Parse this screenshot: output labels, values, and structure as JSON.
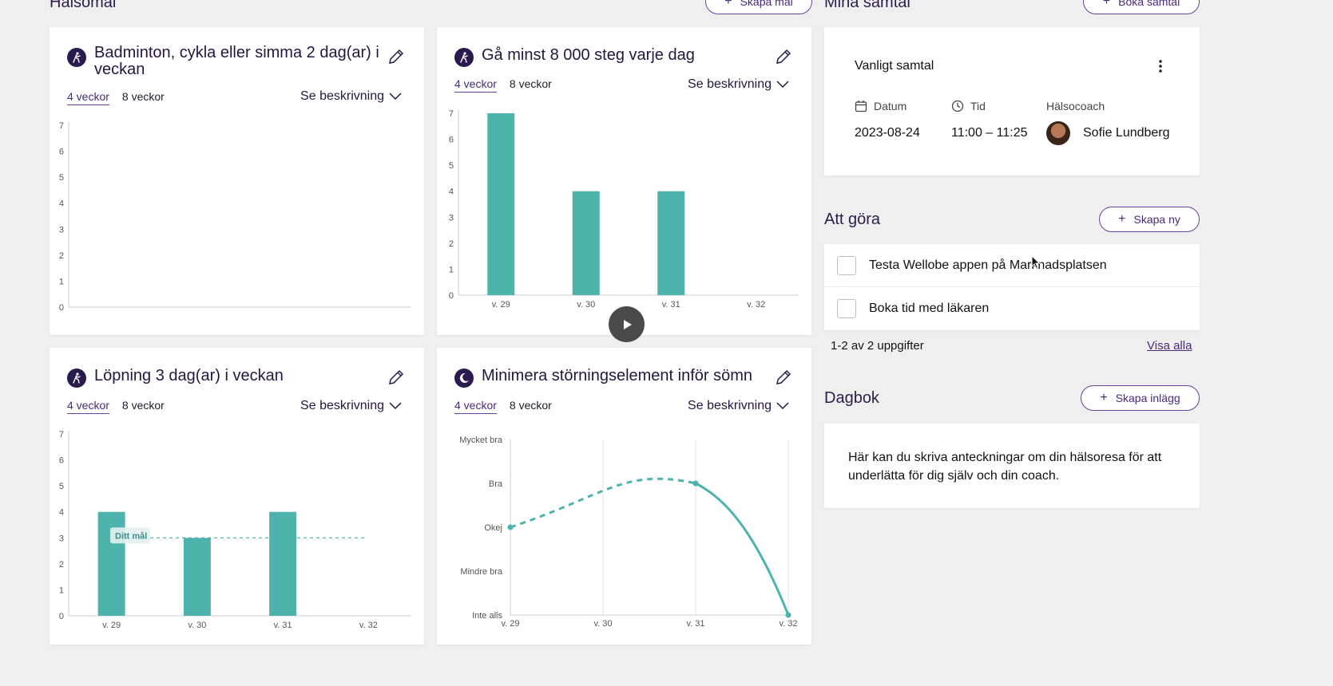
{
  "health_goals": {
    "title": "Hälsomål",
    "create_button": "Skapa mål"
  },
  "goals": [
    {
      "title": "Badminton, cykla eller simma 2 dag(ar) i veckan",
      "icon": "walking-icon",
      "tab_4": "4 veckor",
      "tab_8": "8 veckor",
      "description": "Se beskrivning",
      "chart_data": {
        "type": "bar",
        "categories": [],
        "values": [],
        "ylim": [
          0,
          7
        ],
        "yticks": [
          "0",
          "1",
          "2",
          "3",
          "4",
          "5",
          "6",
          "7"
        ]
      }
    },
    {
      "title": "Gå minst 8 000 steg varje dag",
      "icon": "walking-icon",
      "tab_4": "4 veckor",
      "tab_8": "8 veckor",
      "description": "Se beskrivning",
      "chart_data": {
        "type": "bar",
        "categories": [
          "v. 29",
          "v. 30",
          "v. 31",
          "v. 32"
        ],
        "values": [
          7,
          4,
          4,
          0
        ],
        "ylim": [
          0,
          7
        ],
        "yticks": [
          "0",
          "1",
          "2",
          "3",
          "4",
          "5",
          "6",
          "7"
        ]
      }
    },
    {
      "title": "Löpning 3 dag(ar) i veckan",
      "icon": "walking-icon",
      "tab_4": "4 veckor",
      "tab_8": "8 veckor",
      "description": "Se beskrivning",
      "chart_data": {
        "type": "bar",
        "categories": [
          "v. 29",
          "v. 30",
          "v. 31",
          "v. 32"
        ],
        "values": [
          4,
          3,
          4,
          0
        ],
        "ylim": [
          0,
          7
        ],
        "yticks": [
          "0",
          "1",
          "2",
          "3",
          "4",
          "5",
          "6",
          "7"
        ],
        "target_value": 3,
        "target_label": "Ditt mål"
      }
    },
    {
      "title": "Minimera störningselement inför sömn",
      "icon": "moon-icon",
      "tab_4": "4 veckor",
      "tab_8": "8 veckor",
      "description": "Se beskrivning",
      "chart_data": {
        "type": "line",
        "categories": [
          "v. 29",
          "v. 30",
          "v. 31",
          "v. 32"
        ],
        "levels": [
          "Inte alls",
          "Mindre bra",
          "Okej",
          "Bra",
          "Mycket bra"
        ],
        "values": [
          2,
          null,
          3,
          0
        ]
      }
    }
  ],
  "calls": {
    "title": "Mina samtal",
    "book_button": "Boka samtal",
    "card": {
      "type": "Vanligt samtal",
      "date_label": "Datum",
      "date": "2023-08-24",
      "time_label": "Tid",
      "time": "11:00 – 11:25",
      "coach_label": "Hälsocoach",
      "coach": "Sofie Lundberg"
    }
  },
  "todo": {
    "title": "Att göra",
    "create_button": "Skapa ny",
    "items": [
      "Testa Wellobe appen på Marknadsplatsen",
      "Boka tid med läkaren"
    ],
    "summary": "1-2 av 2 uppgifter",
    "show_all": "Visa alla"
  },
  "diary": {
    "title": "Dagbok",
    "create_button": "Skapa inlägg",
    "text": "Här kan du skriva anteckningar om din hälsoresa för att underlätta för dig själv och din coach."
  },
  "colors": {
    "bar": "#4db3ac",
    "accent": "#6b3fa0",
    "dark": "#2a1a4e"
  }
}
